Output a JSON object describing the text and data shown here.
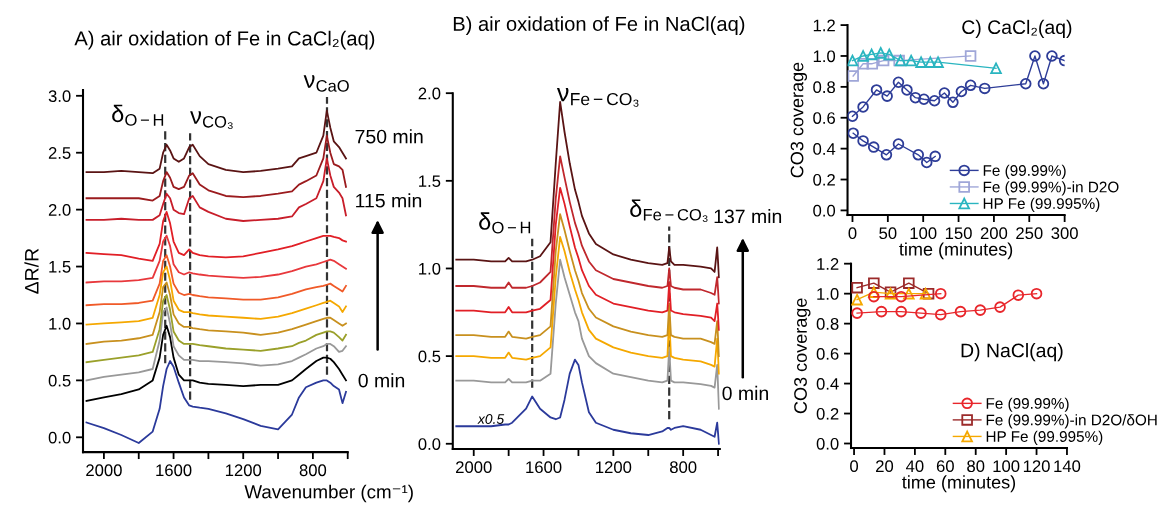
{
  "chart_data": [
    {
      "type": "line",
      "title": "A) air oxidation of Fe in CaCl₂(aq)",
      "xlabel": "Wavenumber (cm⁻¹)",
      "ylabel": "ΔR/R",
      "xlim": [
        2120,
        600
      ],
      "ylim": [
        -0.13,
        3.05
      ],
      "xticks": [
        2000,
        {
          "value": 1800,
          "label": null
        },
        1600,
        {
          "value": 1400,
          "label": null
        },
        1200,
        {
          "value": 1000,
          "label": null
        },
        800,
        {
          "value": 600,
          "label": null
        }
      ],
      "yticks": [
        {
          "value": 0,
          "label": "0.0"
        },
        {
          "value": 0.5,
          "label": "0.5"
        },
        {
          "value": 1,
          "label": "1.0"
        },
        {
          "value": 1.5,
          "label": "1.5"
        },
        {
          "value": 2,
          "label": "2.0"
        },
        {
          "value": 2.5,
          "label": "2.5"
        },
        {
          "value": 3,
          "label": "3.0"
        }
      ],
      "x": [
        2100,
        2000,
        1900,
        1800,
        1720,
        1680,
        1660,
        1640,
        1620,
        1600,
        1570,
        1540,
        1510,
        1490,
        1450,
        1400,
        1300,
        1200,
        1100,
        1000,
        920,
        880,
        840,
        780,
        740,
        720,
        700,
        680,
        650,
        630,
        610
      ],
      "series": [
        {
          "color": "#2b3a9b",
          "values": [
            0.13,
            0.08,
            0.02,
            -0.05,
            0.05,
            0.25,
            0.45,
            0.6,
            0.67,
            0.62,
            0.48,
            0.35,
            0.28,
            0.27,
            0.26,
            0.25,
            0.21,
            0.16,
            0.1,
            0.07,
            0.2,
            0.35,
            0.44,
            0.48,
            0.5,
            0.5,
            0.48,
            0.45,
            0.42,
            0.3,
            0.4
          ]
        },
        {
          "color": "#000000",
          "values": [
            0.32,
            0.35,
            0.38,
            0.42,
            0.5,
            0.7,
            0.9,
            0.98,
            0.88,
            0.7,
            0.55,
            0.5,
            0.5,
            0.5,
            0.48,
            0.47,
            0.46,
            0.45,
            0.46,
            0.46,
            0.5,
            0.55,
            0.6,
            0.67,
            0.7,
            0.7,
            0.69,
            0.66,
            0.6,
            0.55,
            0.5
          ]
        },
        {
          "color": "#999999",
          "values": [
            0.5,
            0.53,
            0.55,
            0.57,
            0.6,
            0.85,
            1.1,
            1.14,
            1.0,
            0.8,
            0.72,
            0.68,
            0.68,
            0.68,
            0.67,
            0.67,
            0.66,
            0.65,
            0.63,
            0.64,
            0.67,
            0.7,
            0.73,
            0.78,
            0.8,
            0.82,
            0.82,
            0.8,
            0.75,
            0.76,
            0.8
          ]
        },
        {
          "color": "#9aa02a",
          "values": [
            0.66,
            0.68,
            0.7,
            0.72,
            0.75,
            0.95,
            1.2,
            1.25,
            1.12,
            0.93,
            0.85,
            0.82,
            0.82,
            0.82,
            0.81,
            0.8,
            0.78,
            0.77,
            0.76,
            0.78,
            0.8,
            0.83,
            0.85,
            0.9,
            0.92,
            0.93,
            0.93,
            0.92,
            0.88,
            0.85,
            0.9
          ]
        },
        {
          "color": "#c8901e",
          "values": [
            0.82,
            0.84,
            0.85,
            0.87,
            0.9,
            1.1,
            1.32,
            1.36,
            1.25,
            1.08,
            1.0,
            0.97,
            0.97,
            0.96,
            0.95,
            0.94,
            0.93,
            0.92,
            0.9,
            0.92,
            0.95,
            0.97,
            0.99,
            1.02,
            1.04,
            1.05,
            1.05,
            1.03,
            1.0,
            0.98,
            1.0
          ]
        },
        {
          "color": "#f5a800",
          "values": [
            0.99,
            1.0,
            1.01,
            1.02,
            1.05,
            1.25,
            1.45,
            1.5,
            1.38,
            1.2,
            1.12,
            1.1,
            1.1,
            1.09,
            1.08,
            1.07,
            1.06,
            1.05,
            1.04,
            1.06,
            1.09,
            1.11,
            1.13,
            1.16,
            1.18,
            1.19,
            1.2,
            1.18,
            1.15,
            1.1,
            1.15
          ]
        },
        {
          "color": "#f05a28",
          "values": [
            1.16,
            1.17,
            1.17,
            1.18,
            1.2,
            1.35,
            1.55,
            1.6,
            1.5,
            1.35,
            1.27,
            1.25,
            1.26,
            1.25,
            1.24,
            1.23,
            1.22,
            1.21,
            1.21,
            1.23,
            1.26,
            1.28,
            1.3,
            1.32,
            1.33,
            1.34,
            1.35,
            1.33,
            1.3,
            1.28,
            1.33
          ]
        },
        {
          "color": "#e8383c",
          "values": [
            1.36,
            1.37,
            1.37,
            1.38,
            1.4,
            1.55,
            1.72,
            1.77,
            1.68,
            1.52,
            1.45,
            1.43,
            1.45,
            1.44,
            1.43,
            1.42,
            1.41,
            1.4,
            1.41,
            1.43,
            1.46,
            1.48,
            1.5,
            1.52,
            1.54,
            1.55,
            1.56,
            1.55,
            1.52,
            1.5,
            1.48
          ]
        },
        {
          "color": "#e11f26",
          "values": [
            1.62,
            1.61,
            1.6,
            1.57,
            1.55,
            1.7,
            1.9,
            1.98,
            1.88,
            1.72,
            1.62,
            1.6,
            1.65,
            1.62,
            1.6,
            1.59,
            1.58,
            1.59,
            1.62,
            1.65,
            1.68,
            1.7,
            1.72,
            1.75,
            1.77,
            1.77,
            1.77,
            1.76,
            1.75,
            1.73,
            1.72
          ]
        },
        {
          "color": "#c81e2a",
          "values": [
            1.91,
            1.91,
            1.92,
            1.91,
            1.91,
            1.95,
            2.05,
            2.14,
            2.1,
            2.0,
            1.97,
            1.96,
            2.1,
            2.12,
            2.02,
            1.98,
            1.92,
            1.9,
            1.91,
            1.92,
            1.94,
            2.02,
            2.05,
            2.1,
            2.25,
            2.45,
            2.3,
            2.2,
            2.15,
            2.1,
            1.95
          ]
        },
        {
          "color": "#9b1b1e",
          "values": [
            2.1,
            2.1,
            2.1,
            2.1,
            2.08,
            2.12,
            2.25,
            2.33,
            2.28,
            2.2,
            2.18,
            2.2,
            2.3,
            2.32,
            2.22,
            2.17,
            2.12,
            2.11,
            2.12,
            2.14,
            2.16,
            2.22,
            2.25,
            2.3,
            2.45,
            2.65,
            2.5,
            2.4,
            2.38,
            2.35,
            2.2
          ]
        },
        {
          "color": "#5a1414",
          "values": [
            2.33,
            2.33,
            2.34,
            2.33,
            2.32,
            2.36,
            2.5,
            2.57,
            2.52,
            2.45,
            2.42,
            2.45,
            2.55,
            2.57,
            2.47,
            2.4,
            2.35,
            2.33,
            2.34,
            2.36,
            2.38,
            2.45,
            2.47,
            2.5,
            2.65,
            2.87,
            2.72,
            2.6,
            2.55,
            2.5,
            2.45
          ]
        }
      ],
      "ref_lines": [
        {
          "axis": "x",
          "value": 1648,
          "label": "δ$_{O−H}$",
          "line_style": "dashed"
        },
        {
          "axis": "x",
          "value": 1505,
          "label": "ν$_{CO₃}$",
          "line_style": "dashed"
        },
        {
          "axis": "x",
          "value": 719,
          "label": "ν$_{CaO}$",
          "line_style": "dashed"
        }
      ],
      "annotations": [
        "750 min",
        "115 min",
        "0 min"
      ]
    },
    {
      "type": "line",
      "title": "B) air oxidation of Fe in NaCl(aq)",
      "xlim": [
        2120,
        590
      ],
      "ylim": [
        -0.03,
        2.0
      ],
      "xticks": [
        2000,
        {
          "value": 1800,
          "label": null
        },
        1600,
        {
          "value": 1400,
          "label": null
        },
        1200,
        {
          "value": 1000,
          "label": null
        },
        800,
        {
          "value": 600,
          "label": null
        }
      ],
      "yticks": [
        {
          "value": 0,
          "label": "0.0"
        },
        {
          "value": 0.5,
          "label": "0.5"
        },
        {
          "value": 1,
          "label": "1.0"
        },
        {
          "value": 1.5,
          "label": "1.5"
        },
        {
          "value": 2,
          "label": "2.0"
        }
      ],
      "x": [
        2100,
        2000,
        1900,
        1820,
        1800,
        1780,
        1700,
        1665,
        1620,
        1560,
        1530,
        1505,
        1480,
        1450,
        1420,
        1400,
        1380,
        1340,
        1300,
        1200,
        1100,
        1000,
        920,
        890,
        880,
        870,
        850,
        800,
        700,
        640,
        620,
        605,
        595
      ],
      "series": [
        {
          "color": "#2b3a9b",
          "values": [
            0.1,
            0.1,
            0.1,
            0.11,
            0.11,
            0.12,
            0.2,
            0.27,
            0.2,
            0.15,
            0.14,
            0.15,
            0.25,
            0.4,
            0.48,
            0.45,
            0.35,
            0.18,
            0.12,
            0.08,
            0.06,
            0.05,
            0.07,
            0.09,
            0.09,
            0.08,
            0.09,
            0.1,
            0.08,
            0.05,
            0.04,
            0.12,
            0.0
          ]
        },
        {
          "color": "#999999",
          "values": [
            0.36,
            0.36,
            0.35,
            0.35,
            0.37,
            0.35,
            0.35,
            0.36,
            0.36,
            0.4,
            0.8,
            1.05,
            0.95,
            0.85,
            0.75,
            0.7,
            0.6,
            0.5,
            0.46,
            0.4,
            0.38,
            0.36,
            0.35,
            0.36,
            0.55,
            0.36,
            0.35,
            0.35,
            0.34,
            0.33,
            0.32,
            0.45,
            0.2
          ]
        },
        {
          "color": "#f5a800",
          "values": [
            0.5,
            0.5,
            0.49,
            0.49,
            0.52,
            0.49,
            0.48,
            0.49,
            0.5,
            0.55,
            0.95,
            1.18,
            1.1,
            0.98,
            0.88,
            0.82,
            0.75,
            0.65,
            0.6,
            0.55,
            0.52,
            0.5,
            0.49,
            0.5,
            0.72,
            0.5,
            0.49,
            0.48,
            0.47,
            0.45,
            0.44,
            0.6,
            0.4
          ]
        },
        {
          "color": "#c8901e",
          "values": [
            0.62,
            0.62,
            0.61,
            0.61,
            0.64,
            0.61,
            0.6,
            0.61,
            0.62,
            0.67,
            1.1,
            1.31,
            1.22,
            1.1,
            0.99,
            0.93,
            0.86,
            0.77,
            0.72,
            0.67,
            0.64,
            0.62,
            0.61,
            0.62,
            0.8,
            0.62,
            0.61,
            0.6,
            0.6,
            0.58,
            0.57,
            0.7,
            0.5
          ]
        },
        {
          "color": "#e11f26",
          "values": [
            0.76,
            0.76,
            0.75,
            0.75,
            0.78,
            0.75,
            0.75,
            0.76,
            0.77,
            0.82,
            1.25,
            1.46,
            1.37,
            1.24,
            1.12,
            1.06,
            0.99,
            0.9,
            0.85,
            0.8,
            0.78,
            0.76,
            0.75,
            0.76,
            0.92,
            0.76,
            0.75,
            0.74,
            0.73,
            0.72,
            0.7,
            0.8,
            0.65
          ]
        },
        {
          "color": "#c0282d",
          "values": [
            0.9,
            0.9,
            0.89,
            0.89,
            0.92,
            0.89,
            0.89,
            0.9,
            0.92,
            0.98,
            1.4,
            1.64,
            1.52,
            1.38,
            1.26,
            1.2,
            1.13,
            1.04,
            0.99,
            0.94,
            0.92,
            0.9,
            0.89,
            0.9,
            1.0,
            0.9,
            0.89,
            0.88,
            0.88,
            0.86,
            0.85,
            0.95,
            0.8
          ]
        },
        {
          "color": "#5a1414",
          "values": [
            1.05,
            1.05,
            1.04,
            1.04,
            1.06,
            1.04,
            1.04,
            1.05,
            1.07,
            1.15,
            1.6,
            1.95,
            1.78,
            1.6,
            1.45,
            1.38,
            1.3,
            1.2,
            1.14,
            1.08,
            1.05,
            1.03,
            1.02,
            1.03,
            1.12,
            1.04,
            1.02,
            1.02,
            1.01,
            1.0,
            0.98,
            1.12,
            0.95
          ]
        }
      ],
      "ref_lines": [
        {
          "axis": "x",
          "value": 1665,
          "label": "δ$_{O−H}$",
          "line_style": "dashed"
        },
        {
          "axis": "x",
          "value": 880,
          "label": "δ$_{Fe−CO₃}$",
          "line_style": "dashed"
        }
      ],
      "annotations": [
        "ν$_{Fe−CO₃}$",
        "x0.5",
        "137 min",
        "0 min"
      ]
    },
    {
      "type": "line",
      "title": "C) CaCl₂(aq)",
      "xlabel": "time (minutes)",
      "ylabel": "CO3 coverage",
      "legend": "bottom right",
      "xlim": [
        -7,
        300
      ],
      "ylim": [
        -0.03,
        1.2
      ],
      "xticks": [
        0,
        50,
        100,
        150,
        200,
        250,
        300
      ],
      "yticks": [
        {
          "value": 0,
          "label": "0.0"
        },
        {
          "value": 0.2,
          "label": "0.2"
        },
        {
          "value": 0.4,
          "label": "0.4"
        },
        {
          "value": 0.6,
          "label": "0.6"
        },
        {
          "value": 0.8,
          "label": "0.8"
        },
        {
          "value": 1,
          "label": "1.0"
        },
        {
          "value": 1.2,
          "label": "1.2"
        }
      ],
      "series": [
        {
          "name": "Fe (99.99%)",
          "color": "#2e3d98",
          "marker": "circle",
          "x": [
            0,
            15,
            34,
            49,
            65,
            77,
            89,
            101,
            116,
            130,
            142,
            154,
            167,
            187,
            245,
            258,
            270,
            282,
            300
          ],
          "values": [
            0.61,
            0.67,
            0.78,
            0.74,
            0.83,
            0.78,
            0.73,
            0.72,
            0.71,
            0.76,
            0.7,
            0.77,
            0.81,
            0.79,
            0.82,
            1.0,
            0.82,
            1.0,
            0.97
          ]
        },
        {
          "name": "Fe (99.99%)-in D2O",
          "color": "#9fa6d8",
          "marker": "square",
          "x": [
            1,
            15,
            28,
            44,
            66,
            167
          ],
          "values": [
            0.87,
            0.95,
            0.95,
            0.97,
            0.97,
            1.0
          ]
        },
        {
          "name": "HP Fe (99.995%)",
          "color": "#2ab5c0",
          "marker": "triangle",
          "x": [
            0,
            15,
            27,
            40,
            52,
            68,
            83,
            97,
            110,
            121,
            203
          ],
          "values": [
            0.97,
            1.0,
            1.01,
            1.02,
            1.01,
            0.97,
            0.97,
            0.96,
            0.96,
            0.96,
            0.92
          ]
        },
        {
          "color": "#2e3d98",
          "marker": "circle",
          "x": [
            1,
            15,
            30,
            48,
            65,
            93,
            105,
            117
          ],
          "values": [
            0.5,
            0.45,
            0.41,
            0.36,
            0.43,
            0.36,
            0.31,
            0.35
          ]
        }
      ]
    },
    {
      "type": "line",
      "title": "D) NaCl(aq)",
      "xlabel": "time (minutes)",
      "ylabel": "CO3 coverage",
      "legend": "bottom right",
      "xlim": [
        -2,
        140
      ],
      "ylim": [
        -0.03,
        1.2
      ],
      "xticks": [
        0,
        20,
        40,
        60,
        80,
        100,
        120,
        140
      ],
      "yticks": [
        {
          "value": 0,
          "label": "0.0"
        },
        {
          "value": 0.2,
          "label": "0.2"
        },
        {
          "value": 0.4,
          "label": "0.4"
        },
        {
          "value": 0.6,
          "label": "0.6"
        },
        {
          "value": 0.8,
          "label": "0.8"
        },
        {
          "value": 1,
          "label": "1.0"
        },
        {
          "value": 1.2,
          "label": "1.2"
        }
      ],
      "series": [
        {
          "name": "Fe (99.99%)",
          "color": "#e8262b",
          "marker": "circle",
          "x": [
            2,
            18,
            31,
            44,
            57,
            70,
            83,
            96,
            108,
            120
          ],
          "values": [
            0.87,
            0.88,
            0.88,
            0.87,
            0.86,
            0.88,
            0.89,
            0.91,
            0.99,
            1.0
          ]
        },
        {
          "name": "Fe (99.99%)-in D2O/δOH",
          "color": "#9b2a2a",
          "marker": "square",
          "x": [
            2,
            13,
            24,
            36,
            49
          ],
          "values": [
            1.04,
            1.07,
            1.01,
            1.07,
            1.0
          ]
        },
        {
          "name": "HP Fe (99.995%)",
          "color": "#f5a800",
          "marker": "triangle",
          "x": [
            2,
            13,
            24,
            36,
            47
          ],
          "values": [
            0.96,
            1.01,
            1.0,
            1.0,
            1.0
          ]
        },
        {
          "color": "#e8262b",
          "marker": "circle",
          "x": [
            13,
            31,
            57
          ],
          "values": [
            0.98,
            0.98,
            1.0
          ]
        }
      ]
    }
  ]
}
